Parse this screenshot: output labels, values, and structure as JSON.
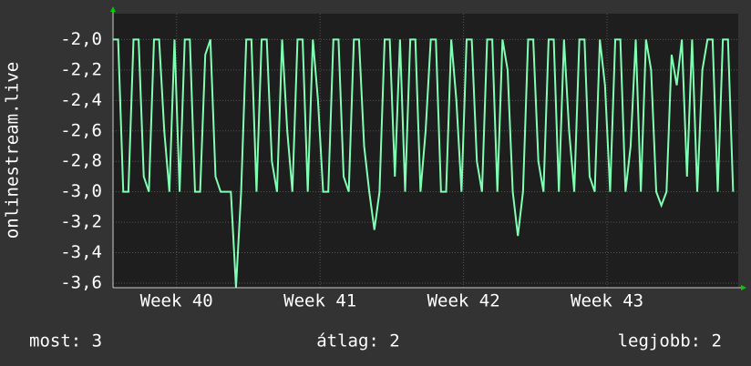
{
  "chart_data": {
    "type": "line",
    "y_label": "onlinestream.live",
    "x": [
      0,
      0.25,
      0.5,
      0.75,
      1,
      1.25,
      1.5,
      1.75,
      2,
      2.25,
      2.5,
      2.75,
      3,
      3.25,
      3.5,
      3.75,
      4,
      4.25,
      4.5,
      4.75,
      5,
      5.25,
      5.5,
      5.75,
      6,
      6.25,
      6.5,
      6.75,
      7,
      7.25,
      7.5,
      7.75,
      8,
      8.25,
      8.5,
      8.75,
      9,
      9.25,
      9.5,
      9.75,
      10,
      10.25,
      10.5,
      10.75,
      11,
      11.25,
      11.5,
      11.75,
      12,
      12.25,
      12.5,
      12.75,
      13,
      13.25,
      13.5,
      13.75,
      14,
      14.25,
      14.5,
      14.75,
      15,
      15.25,
      15.5,
      15.75,
      16,
      16.25,
      16.5,
      16.75,
      17,
      17.25,
      17.5,
      17.75,
      18,
      18.25,
      18.5,
      18.75,
      19,
      19.25,
      19.5,
      19.75,
      20,
      20.25,
      20.5,
      20.75,
      21,
      21.25,
      21.5,
      21.75,
      22,
      22.25,
      22.5,
      22.75,
      23,
      23.25,
      23.5,
      23.75,
      24,
      24.25,
      24.5,
      24.75,
      25,
      25.25,
      25.5,
      25.75,
      26,
      26.25,
      26.5,
      26.75,
      27,
      27.25,
      27.5,
      27.75,
      28,
      28.25,
      28.5,
      28.75,
      29,
      29.25,
      29.5,
      29.75,
      30,
      30.25
    ],
    "series": [
      {
        "color": "#80ffb4",
        "values": [
          -2.0,
          -2.0,
          -3.0,
          -3.0,
          -2.0,
          -2.0,
          -2.9,
          -3.0,
          -2.0,
          -2.0,
          -2.6,
          -3.0,
          -2.0,
          -3.0,
          -2.0,
          -2.0,
          -3.0,
          -3.0,
          -2.1,
          -2.0,
          -2.9,
          -3.0,
          -3.0,
          -3.0,
          -3.63,
          -3.0,
          -2.0,
          -2.0,
          -3.0,
          -2.0,
          -2.0,
          -2.8,
          -3.0,
          -2.0,
          -2.6,
          -3.0,
          -2.0,
          -2.0,
          -3.0,
          -2.0,
          -2.4,
          -3.0,
          -3.0,
          -2.0,
          -2.0,
          -2.9,
          -3.0,
          -2.0,
          -2.0,
          -2.7,
          -3.0,
          -3.25,
          -3.0,
          -2.0,
          -2.0,
          -2.9,
          -2.0,
          -3.0,
          -2.0,
          -2.0,
          -3.0,
          -2.6,
          -2.0,
          -2.0,
          -3.0,
          -3.0,
          -2.0,
          -2.4,
          -3.0,
          -2.0,
          -2.0,
          -2.8,
          -3.0,
          -2.0,
          -2.0,
          -3.0,
          -2.0,
          -2.2,
          -3.0,
          -3.29,
          -3.0,
          -2.0,
          -2.0,
          -2.8,
          -3.0,
          -2.0,
          -2.0,
          -3.0,
          -2.0,
          -2.6,
          -3.0,
          -2.0,
          -2.0,
          -2.9,
          -3.0,
          -2.0,
          -2.3,
          -3.0,
          -2.0,
          -2.0,
          -3.0,
          -2.7,
          -2.0,
          -3.0,
          -2.0,
          -2.2,
          -3.0,
          -3.09,
          -3.0,
          -2.1,
          -2.3,
          -2.0,
          -2.9,
          -2.0,
          -3.0,
          -2.2,
          -2.0,
          -2.0,
          -3.0,
          -2.0,
          -2.0,
          -3.0
        ]
      }
    ],
    "xlim": [
      0,
      30.5
    ],
    "xticks": [
      {
        "value": 3.1,
        "label": "Week 40"
      },
      {
        "value": 10.1,
        "label": "Week 41"
      },
      {
        "value": 17.1,
        "label": "Week 42"
      },
      {
        "value": 24.1,
        "label": "Week 43"
      }
    ],
    "ylim": [
      -3.63,
      -1.83
    ],
    "yticks": [
      {
        "value": -2.0,
        "label": "-2,0"
      },
      {
        "value": -2.2,
        "label": "-2,2"
      },
      {
        "value": -2.4,
        "label": "-2,4"
      },
      {
        "value": -2.6,
        "label": "-2,6"
      },
      {
        "value": -2.8,
        "label": "-2,8"
      },
      {
        "value": -3.0,
        "label": "-3,0"
      },
      {
        "value": -3.2,
        "label": "-3,2"
      },
      {
        "value": -3.4,
        "label": "-3,4"
      },
      {
        "value": -3.6,
        "label": "-3,6"
      }
    ],
    "grid": true,
    "footer": [
      "most: 3",
      "átlag: 2",
      "legjobb: 2"
    ]
  }
}
